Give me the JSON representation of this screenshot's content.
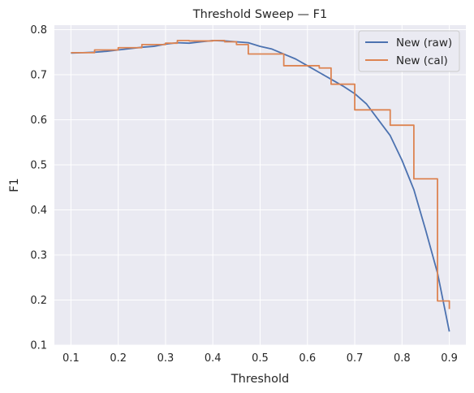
{
  "chart_data": {
    "type": "line",
    "title": "Threshold Sweep — F1",
    "xlabel": "Threshold",
    "ylabel": "F1",
    "xlim": [
      0.065,
      0.935
    ],
    "ylim": [
      0.1,
      0.81
    ],
    "xticks": [
      "0.1",
      "0.2",
      "0.3",
      "0.4",
      "0.5",
      "0.6",
      "0.7",
      "0.8",
      "0.9"
    ],
    "yticks": [
      "0.1",
      "0.2",
      "0.3",
      "0.4",
      "0.5",
      "0.6",
      "0.7",
      "0.8"
    ],
    "grid": true,
    "legend_position": "top-right",
    "series": [
      {
        "name": "New (raw)",
        "color": "#4c72b0",
        "step": false,
        "x": [
          0.1,
          0.125,
          0.15,
          0.175,
          0.2,
          0.225,
          0.25,
          0.275,
          0.3,
          0.325,
          0.35,
          0.375,
          0.4,
          0.425,
          0.45,
          0.475,
          0.5,
          0.525,
          0.55,
          0.575,
          0.6,
          0.625,
          0.65,
          0.675,
          0.7,
          0.725,
          0.75,
          0.775,
          0.8,
          0.825,
          0.85,
          0.875,
          0.9
        ],
        "y": [
          0.748,
          0.749,
          0.75,
          0.752,
          0.755,
          0.758,
          0.761,
          0.763,
          0.768,
          0.771,
          0.77,
          0.773,
          0.776,
          0.775,
          0.773,
          0.771,
          0.763,
          0.757,
          0.746,
          0.735,
          0.72,
          0.705,
          0.69,
          0.675,
          0.658,
          0.635,
          0.6,
          0.565,
          0.51,
          0.445,
          0.355,
          0.26,
          0.13
        ]
      },
      {
        "name": "New (cal)",
        "color": "#dd8452",
        "step": true,
        "x": [
          0.1,
          0.125,
          0.15,
          0.175,
          0.2,
          0.225,
          0.25,
          0.275,
          0.3,
          0.325,
          0.35,
          0.375,
          0.4,
          0.425,
          0.45,
          0.475,
          0.5,
          0.525,
          0.55,
          0.575,
          0.6,
          0.625,
          0.65,
          0.675,
          0.7,
          0.725,
          0.75,
          0.775,
          0.8,
          0.825,
          0.85,
          0.875,
          0.9
        ],
        "y": [
          0.749,
          0.749,
          0.755,
          0.755,
          0.76,
          0.76,
          0.767,
          0.767,
          0.77,
          0.776,
          0.775,
          0.775,
          0.776,
          0.773,
          0.767,
          0.746,
          0.746,
          0.746,
          0.72,
          0.72,
          0.72,
          0.715,
          0.679,
          0.679,
          0.622,
          0.622,
          0.622,
          0.588,
          0.588,
          0.469,
          0.469,
          0.198,
          0.18
        ]
      }
    ]
  }
}
